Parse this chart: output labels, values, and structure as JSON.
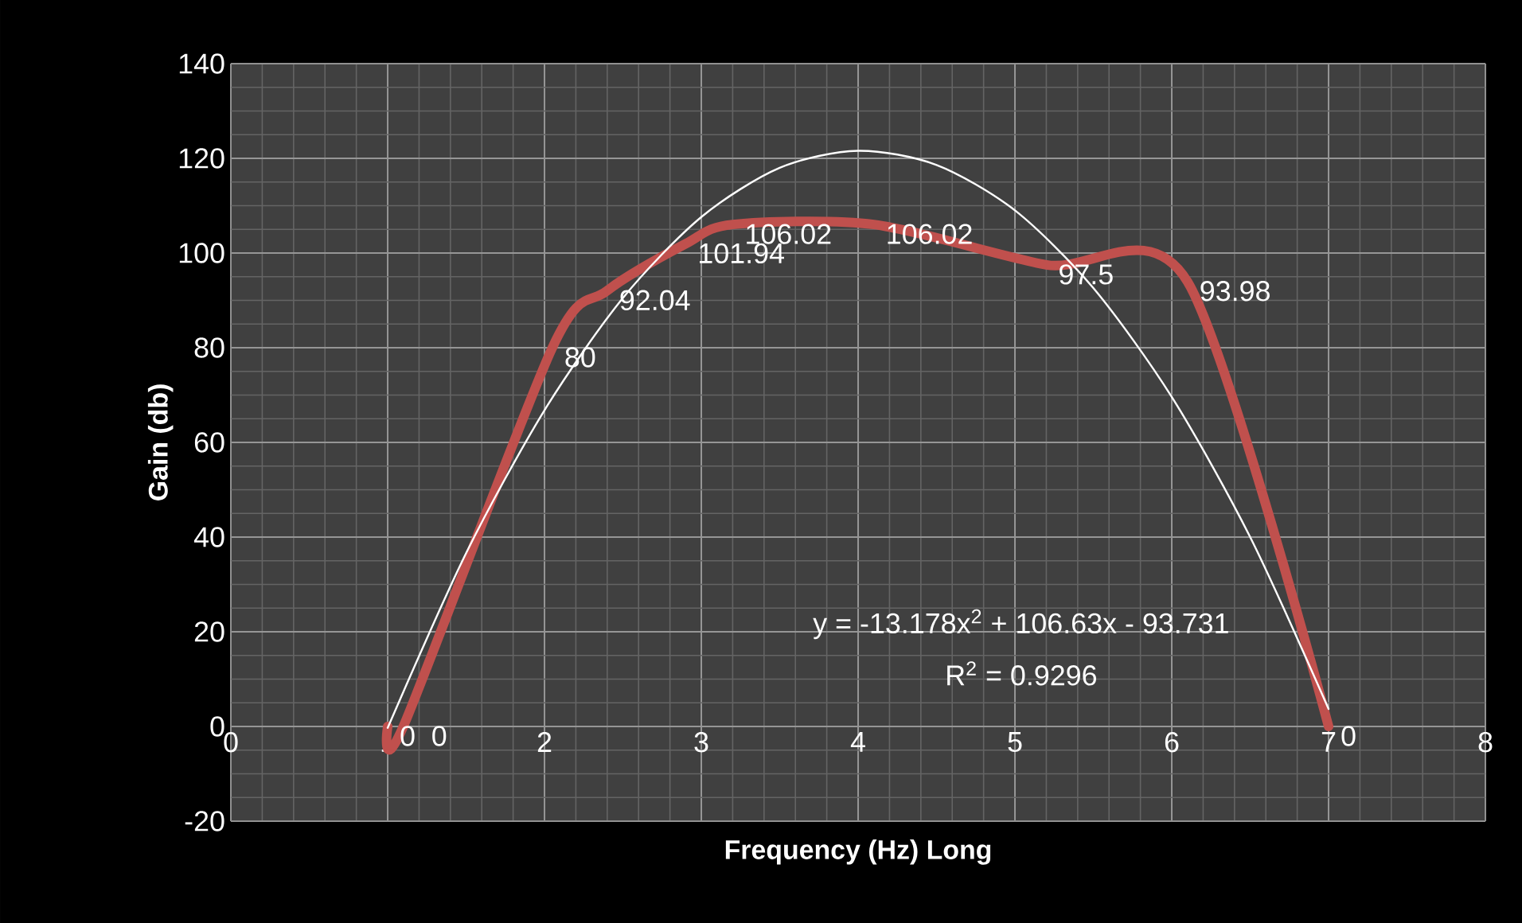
{
  "chart_data": {
    "type": "line",
    "xlabel": "Frequency (Hz) Long",
    "ylabel": "Gain (db)",
    "xlim": [
      0,
      8
    ],
    "xticks": [
      0,
      1,
      2,
      3,
      4,
      5,
      6,
      7,
      8
    ],
    "ylim": [
      -20,
      140
    ],
    "yticks": [
      -20,
      0,
      20,
      40,
      60,
      80,
      100,
      120,
      140
    ],
    "grid": true,
    "marker": "none",
    "line_style": "solid",
    "series": [
      {
        "color": "#c0504d",
        "x": [
          1,
          1.1,
          2.05,
          2.4,
          2.9,
          3.2,
          4.1,
          5.2,
          6.1,
          7
        ],
        "values": [
          0,
          0,
          80,
          92.04,
          101.94,
          106.02,
          106.02,
          97.5,
          93.98,
          0
        ],
        "value_labels": [
          "0",
          "0",
          "80",
          "92.04",
          "101.94",
          "106.02",
          "106.02",
          "97.5",
          "93.98",
          "0"
        ]
      },
      {
        "type": "line",
        "color": "#ffffff",
        "x": [
          1,
          1.5,
          2,
          2.5,
          3,
          3.5,
          4,
          4.5,
          5,
          5.5,
          6,
          6.5,
          7
        ],
        "values": [
          -0.3,
          36.6,
          66.8,
          90.5,
          107.6,
          118,
          121.6,
          118.6,
          109,
          92.6,
          69.6,
          40,
          3.7
        ]
      }
    ],
    "annotations": [
      "y = -13.178x$^{2}$ + 106.63x - 93.731",
      "R$^{2}$ = 0.9296"
    ]
  }
}
